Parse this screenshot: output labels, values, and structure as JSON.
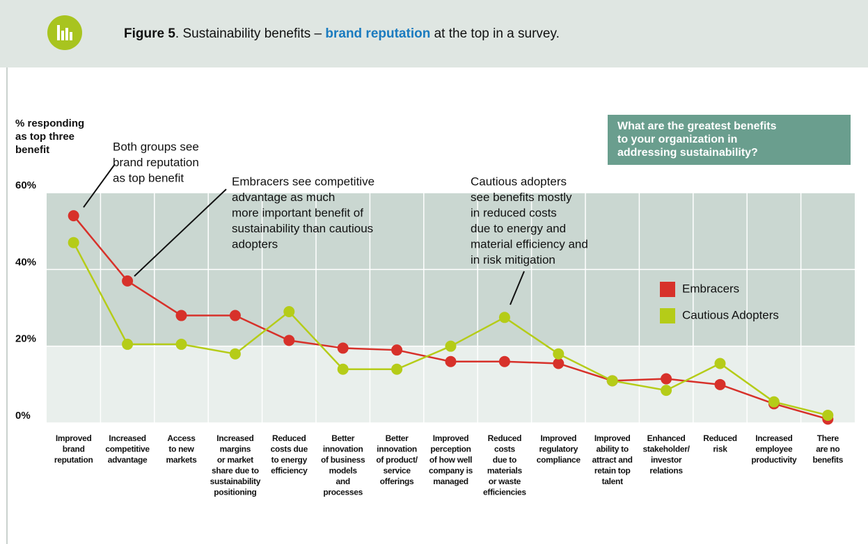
{
  "chart_data": {
    "type": "line",
    "title": {
      "figure": "Figure 5",
      "text1": ". Sustainability benefits – ",
      "highlight": "brand reputation",
      "text2": " at the top in a survey."
    },
    "y_label": [
      "% responding",
      "as top three",
      "benefit"
    ],
    "question": [
      "What are the greatest benefits",
      "to your organization in",
      "addressing sustainability?"
    ],
    "annotations": [
      [
        "Both groups see",
        "brand reputation",
        "as top benefit"
      ],
      [
        "Embracers see competitive",
        "advantage as much",
        "more important benefit of",
        "sustainability than cautious",
        "adopters"
      ],
      [
        "Cautious adopters",
        "see benefits mostly",
        "in reduced costs",
        "due to energy and",
        "material efficiency and",
        "in risk mitigation"
      ]
    ],
    "categories": [
      [
        "Improved",
        "brand",
        "reputation"
      ],
      [
        "Increased",
        "competitive",
        "advantage"
      ],
      [
        "Access",
        "to new",
        "markets"
      ],
      [
        "Increased",
        "margins",
        "or market",
        "share due to",
        "sustainability",
        "positioning"
      ],
      [
        "Reduced",
        "costs due",
        "to energy",
        "efficiency"
      ],
      [
        "Better",
        "innovation",
        "of business",
        "models",
        "and",
        "processes"
      ],
      [
        "Better",
        "innovation",
        "of product/",
        "service",
        "offerings"
      ],
      [
        "Improved",
        "perception",
        "of how well",
        "company is",
        "managed"
      ],
      [
        "Reduced",
        "costs",
        "due to",
        "materials",
        "or waste",
        "efficiencies"
      ],
      [
        "Improved",
        "regulatory",
        "compliance"
      ],
      [
        "Improved",
        "ability to",
        "attract and",
        "retain top",
        "talent"
      ],
      [
        "Enhanced",
        "stakeholder/",
        "investor",
        "relations"
      ],
      [
        "Reduced",
        "risk"
      ],
      [
        "Increased",
        "employee",
        "productivity"
      ],
      [
        "There",
        "are no",
        "benefits"
      ]
    ],
    "series": [
      {
        "name": "Embracers",
        "color": "#d7312a",
        "values": [
          54,
          37,
          28,
          28,
          21.5,
          19.5,
          19,
          16,
          16,
          15.5,
          11,
          11.5,
          10,
          5,
          1
        ]
      },
      {
        "name": "Cautious Adopters",
        "color": "#b5cc18",
        "values": [
          47,
          20.5,
          20.5,
          18,
          29,
          14,
          14,
          20,
          27.5,
          18,
          11,
          8.5,
          15.5,
          5.5,
          2
        ]
      }
    ],
    "ylim": [
      0,
      60
    ],
    "yticks": [
      {
        "value": 0,
        "label": "0%"
      },
      {
        "value": 20,
        "label": "20%"
      },
      {
        "value": 40,
        "label": "40%"
      },
      {
        "value": 60,
        "label": "60%"
      }
    ]
  }
}
